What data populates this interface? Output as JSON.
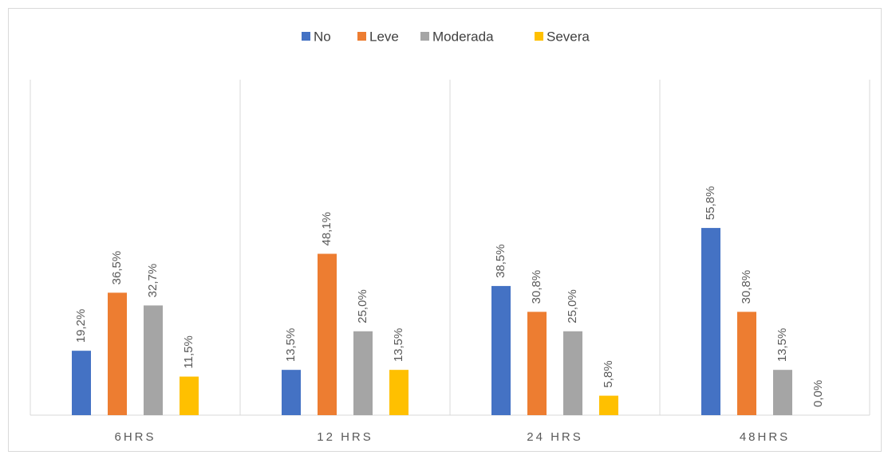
{
  "chart_data": {
    "type": "bar",
    "categories": [
      "6HRS",
      "12 HRS",
      "24 HRS",
      "48HRS"
    ],
    "series": [
      {
        "name": "No",
        "color": "#4472c4",
        "values": [
          19.2,
          13.5,
          38.5,
          55.8
        ],
        "value_labels": [
          "19,2%",
          "13,5%",
          "38,5%",
          "55,8%"
        ]
      },
      {
        "name": "Leve",
        "color": "#ed7d31",
        "values": [
          36.5,
          48.1,
          30.8,
          30.8
        ],
        "value_labels": [
          "36,5%",
          "48,1%",
          "30,8%",
          "30,8%"
        ]
      },
      {
        "name": "Moderada",
        "color": "#a5a5a5",
        "values": [
          32.7,
          25.0,
          25.0,
          13.5
        ],
        "value_labels": [
          "32,7%",
          "25,0%",
          "25,0%",
          "13,5%"
        ]
      },
      {
        "name": "Severa",
        "color": "#ffc000",
        "values": [
          11.5,
          13.5,
          5.8,
          0.0
        ],
        "value_labels": [
          "11,5%",
          "13,5%",
          "5,8%",
          "0,0%"
        ]
      }
    ],
    "ylim": [
      0,
      100
    ],
    "legend": "top"
  }
}
